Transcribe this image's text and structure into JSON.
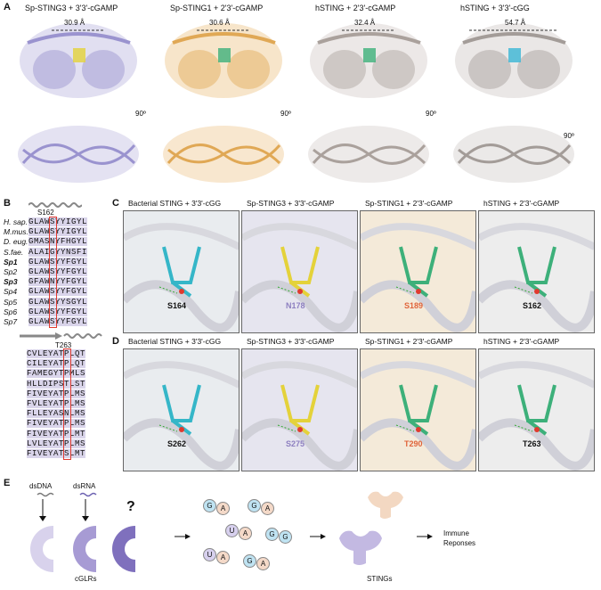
{
  "panelA": {
    "label": "A",
    "titles": [
      "Sp-STING3 + 3'3'-cGAMP",
      "Sp-STING1 + 2'3'-cGAMP",
      "hSTING + 2'3'-cGAMP",
      "hSTING + 3'3'-cGG"
    ],
    "distances": [
      "30.9 Å",
      "30.6 Å",
      "32.4 Å",
      "54.7 Å"
    ],
    "rotation": "90º"
  },
  "panelB": {
    "label": "B",
    "top_residue": "S162",
    "species": [
      "H. sap.",
      "M.mus.",
      "D. eug.",
      "S.fae.",
      "Sp1",
      "Sp2",
      "Sp3",
      "Sp4",
      "Sp5",
      "Sp6",
      "Sp7"
    ],
    "seq_top": [
      "GLAWSYYIGYL",
      "GLAWSYYIGYL",
      "GMASNYFHGYL",
      "ALAIGYYNSFI",
      "GLAWSYYFGYL",
      "GLAWSYYFGYL",
      "GFAWNYYFGYL",
      "GLAWSYYFGYL",
      "GLAWSYYSGYL",
      "GLAWSYYFGYL",
      "GLAWSYYFGYL"
    ],
    "bottom_residue": "T263",
    "seq_bottom": [
      "CVLEYATPLQT",
      "CILEYATPLQT",
      "FAMEGYTPMLS",
      "HLLDIPSTLST",
      "FIVEYATPLMS",
      "FVLEYATPLMS",
      "FLLEYASNLMS",
      "FIVEYATPLMS",
      "FIVEYATPLMT",
      "LVLEYATPLMS",
      "FIVEYATSLMT"
    ]
  },
  "panelC": {
    "label": "C",
    "titles": [
      "Bacterial STING + 3'3'-cGG",
      "Sp-STING3 + 3'3'-cGAMP",
      "Sp-STING1 + 2'3'-cGAMP",
      "hSTING + 2'3'-cGAMP"
    ],
    "residues": [
      "S164",
      "N178",
      "S189",
      "S162"
    ]
  },
  "panelD": {
    "label": "D",
    "titles": [
      "Bacterial STING + 3'3'-cGG",
      "Sp-STING3 + 3'3'-cGAMP",
      "Sp-STING1 + 2'3'-cGAMP",
      "hSTING + 2'3'-cGAMP"
    ],
    "residues": [
      "S262",
      "S275",
      "T290",
      "T263"
    ]
  },
  "panelE": {
    "label": "E",
    "dsDNA": "dsDNA",
    "dsRNA": "dsRNA",
    "question": "?",
    "cglrs": "cGLRs",
    "stings": "STINGs",
    "immune": "Immune Reponses",
    "dinucs": [
      [
        "G",
        "A"
      ],
      [
        "G",
        "A"
      ],
      [
        "U",
        "A"
      ],
      [
        "G",
        "G"
      ],
      [
        "U",
        "A"
      ],
      [
        "G",
        "A"
      ]
    ]
  },
  "colors": {
    "lavender": "#b8b2dc",
    "orange": "#e8b874",
    "grey": "#c9c3c0",
    "purple": "#8d7fc0",
    "red": "#e03a2f"
  }
}
